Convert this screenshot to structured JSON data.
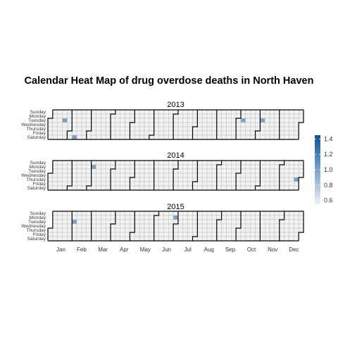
{
  "chart_data": {
    "type": "heatmap",
    "title": "Calendar Heat Map of drug overdose deaths in North Haven",
    "years": [
      "2013",
      "2014",
      "2015"
    ],
    "weekdays": [
      "Sunday",
      "Monday",
      "Tuesday",
      "Wednesday",
      "Thursday",
      "Friday",
      "Saturday"
    ],
    "months": [
      "Jan",
      "Feb",
      "Mar",
      "Apr",
      "May",
      "Jun",
      "Jul",
      "Aug",
      "Sep",
      "Oct",
      "Nov",
      "Dec"
    ],
    "values": [
      {
        "date": "2013-01-22",
        "value": 1.0
      },
      {
        "date": "2013-02-09",
        "value": 1.0
      },
      {
        "date": "2013-10-08",
        "value": 1.0
      },
      {
        "date": "2013-11-05",
        "value": 1.0
      },
      {
        "date": "2014-03-03",
        "value": 1.0
      },
      {
        "date": "2014-12-25",
        "value": 1.0
      },
      {
        "date": "2015-02-03",
        "value": 1.0
      },
      {
        "date": "2015-06-29",
        "value": 1.0
      }
    ],
    "legend": {
      "ticks": [
        1.4,
        1.2,
        1.0,
        0.8,
        0.6
      ],
      "range": [
        0.55,
        1.45
      ],
      "colors": [
        "#EBF0F8",
        "#08519C"
      ]
    },
    "grid": true,
    "legend_position": "right"
  }
}
